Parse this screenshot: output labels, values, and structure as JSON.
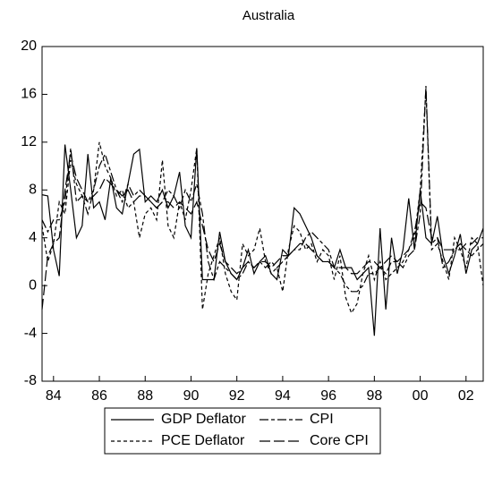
{
  "chart_data": {
    "type": "line",
    "title": "Australia",
    "x": [
      1983.5,
      1983.75,
      1984,
      1984.25,
      1984.5,
      1984.75,
      1985,
      1985.25,
      1985.5,
      1985.75,
      1986,
      1986.25,
      1986.5,
      1986.75,
      1987,
      1987.25,
      1987.5,
      1987.75,
      1988,
      1988.25,
      1988.5,
      1988.75,
      1989,
      1989.25,
      1989.5,
      1989.75,
      1990,
      1990.25,
      1990.5,
      1990.75,
      1991,
      1991.25,
      1991.5,
      1991.75,
      1992,
      1992.25,
      1992.5,
      1992.75,
      1993,
      1993.25,
      1993.5,
      1993.75,
      1994,
      1994.25,
      1994.5,
      1994.75,
      1995,
      1995.25,
      1995.5,
      1995.75,
      1996,
      1996.25,
      1996.5,
      1996.75,
      1997,
      1997.25,
      1997.5,
      1997.75,
      1998,
      1998.25,
      1998.5,
      1998.75,
      1999,
      1999.25,
      1999.5,
      1999.75,
      2000,
      2000.25,
      2000.5,
      2000.75,
      2001,
      2001.25,
      2001.5,
      2001.75,
      2002,
      2002.25,
      2002.5,
      2002.75
    ],
    "series": [
      {
        "name": "GDP Deflator",
        "color": "#000000",
        "line_style": "solid",
        "values": [
          7.6,
          7.5,
          3.0,
          0.8,
          11.8,
          8.0,
          4.0,
          5.0,
          11.0,
          6.5,
          7.0,
          5.5,
          9.0,
          6.5,
          6.0,
          8.5,
          11.0,
          11.4,
          7.0,
          7.5,
          7.0,
          8.0,
          6.5,
          7.5,
          9.5,
          5.0,
          4.0,
          11.5,
          0.5,
          0.5,
          0.5,
          4.5,
          2.0,
          1.0,
          0.5,
          1.5,
          3.0,
          1.0,
          2.0,
          2.5,
          1.0,
          0.5,
          3.0,
          2.5,
          6.5,
          6.0,
          5.0,
          4.0,
          2.5,
          2.0,
          2.0,
          1.5,
          3.0,
          1.5,
          1.5,
          0.5,
          1.0,
          1.5,
          -4.2,
          4.8,
          -2.0,
          4.0,
          1.0,
          3.0,
          7.3,
          3.0,
          8.0,
          4.0,
          3.5,
          5.8,
          2.5,
          1.0,
          2.5,
          4.3,
          1.0,
          3.0,
          3.5,
          4.8
        ]
      },
      {
        "name": "CPI",
        "color": "#000000",
        "line_style": "dash-dot",
        "values": [
          5.5,
          4.5,
          5.5,
          5.5,
          7.0,
          11.5,
          7.0,
          7.5,
          6.0,
          8.0,
          10.0,
          11.0,
          9.5,
          8.0,
          7.0,
          8.5,
          7.5,
          8.0,
          7.5,
          7.0,
          6.5,
          7.0,
          8.0,
          7.5,
          6.5,
          8.0,
          7.0,
          8.5,
          6.0,
          2.0,
          0.5,
          2.0,
          1.5,
          1.0,
          0.5,
          1.0,
          2.0,
          1.5,
          2.0,
          1.5,
          2.0,
          1.5,
          2.0,
          2.5,
          3.0,
          3.0,
          4.0,
          4.5,
          4.0,
          3.5,
          3.0,
          1.5,
          1.0,
          0.0,
          -0.5,
          -0.5,
          0.0,
          1.0,
          1.0,
          1.5,
          1.0,
          2.0,
          2.0,
          1.5,
          2.5,
          3.0,
          6.0,
          16.7,
          3.5,
          4.0,
          1.5,
          2.0,
          3.0,
          3.5,
          3.0,
          2.5,
          3.0,
          3.5
        ]
      },
      {
        "name": "PCE Deflator",
        "color": "#000000",
        "line_style": "short-dash",
        "values": [
          5.0,
          2.0,
          3.5,
          7.0,
          6.0,
          10.5,
          8.5,
          7.5,
          7.0,
          8.0,
          12.0,
          10.0,
          9.0,
          7.5,
          8.0,
          6.5,
          7.0,
          4.0,
          6.0,
          6.5,
          5.5,
          10.5,
          5.0,
          4.0,
          7.0,
          5.5,
          8.0,
          11.5,
          -2.0,
          1.0,
          2.5,
          4.0,
          1.0,
          -0.5,
          -1.2,
          3.5,
          2.5,
          3.0,
          4.8,
          2.0,
          1.0,
          1.5,
          -0.5,
          3.0,
          5.0,
          4.5,
          3.0,
          3.5,
          2.0,
          3.0,
          2.5,
          0.5,
          2.5,
          -1.0,
          -2.3,
          -1.5,
          1.0,
          2.5,
          0.5,
          2.0,
          0.5,
          1.0,
          1.5,
          2.0,
          3.0,
          4.0,
          8.0,
          16.5,
          3.0,
          3.5,
          2.0,
          0.5,
          4.0,
          3.0,
          1.5,
          4.0,
          3.5,
          0.0
        ]
      },
      {
        "name": "Core CPI",
        "color": "#000000",
        "line_style": "long-dash",
        "values": [
          -2.0,
          2.5,
          3.5,
          4.0,
          8.0,
          11.0,
          9.0,
          8.0,
          7.0,
          7.5,
          8.0,
          9.0,
          8.5,
          8.0,
          7.5,
          8.0,
          7.0,
          7.5,
          7.5,
          7.0,
          6.5,
          7.0,
          7.0,
          6.5,
          7.0,
          6.5,
          6.0,
          7.0,
          5.0,
          3.0,
          2.0,
          3.5,
          2.0,
          1.5,
          1.0,
          1.5,
          2.0,
          1.5,
          2.0,
          2.0,
          1.5,
          2.0,
          2.5,
          2.5,
          3.0,
          3.5,
          3.5,
          3.0,
          2.5,
          2.0,
          2.0,
          1.5,
          1.5,
          1.5,
          1.0,
          1.0,
          1.5,
          2.0,
          2.0,
          1.5,
          2.0,
          2.5,
          2.0,
          2.5,
          3.0,
          4.5,
          7.0,
          6.5,
          4.0,
          4.0,
          3.0,
          3.0,
          3.0,
          3.0,
          3.5,
          3.5,
          4.0,
          4.0
        ]
      }
    ],
    "xlim": [
      1983.5,
      2002.75
    ],
    "xticks": [
      {
        "value": 1984,
        "label": "84"
      },
      {
        "value": 1986,
        "label": "86"
      },
      {
        "value": 1988,
        "label": "88"
      },
      {
        "value": 1990,
        "label": "90"
      },
      {
        "value": 1992,
        "label": "92"
      },
      {
        "value": 1994,
        "label": "94"
      },
      {
        "value": 1996,
        "label": "96"
      },
      {
        "value": 1998,
        "label": "98"
      },
      {
        "value": 2000,
        "label": "00"
      },
      {
        "value": 2002,
        "label": "02"
      }
    ],
    "ylim": [
      -8,
      20
    ],
    "yticks": [
      -8,
      -4,
      0,
      4,
      8,
      12,
      16,
      20
    ],
    "grid": false,
    "legend": "bottom"
  }
}
